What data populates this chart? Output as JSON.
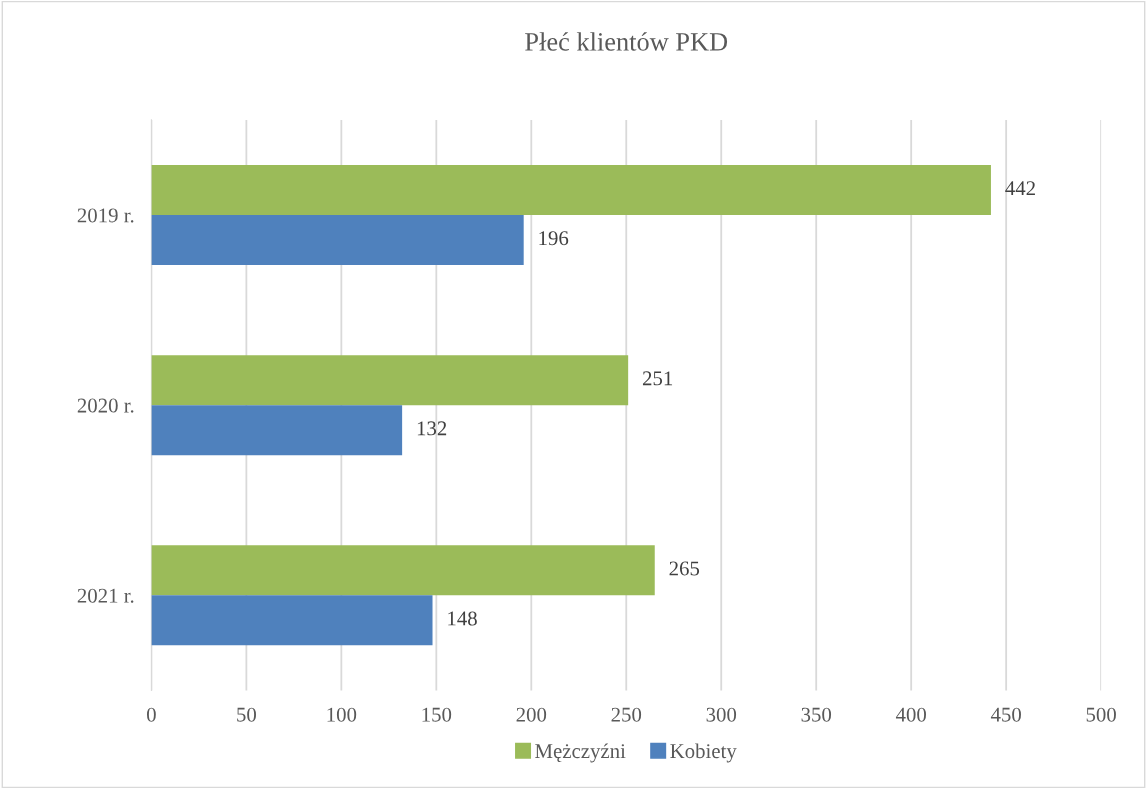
{
  "chart_data": {
    "type": "bar",
    "orientation": "horizontal",
    "title": "Płeć klientów PKD",
    "categories": [
      "2019 r.",
      "2020 r.",
      "2021 r."
    ],
    "series": [
      {
        "name": "Mężczyźni",
        "color": "#9bbb59",
        "values": [
          442,
          251,
          265
        ]
      },
      {
        "name": "Kobiety",
        "color": "#4f81bd",
        "values": [
          196,
          132,
          148
        ]
      }
    ],
    "xlim": [
      0,
      500
    ],
    "xticks": [
      0,
      50,
      100,
      150,
      200,
      250,
      300,
      350,
      400,
      450,
      500
    ],
    "grid": "x",
    "legend": "bottom",
    "data_labels": true
  }
}
